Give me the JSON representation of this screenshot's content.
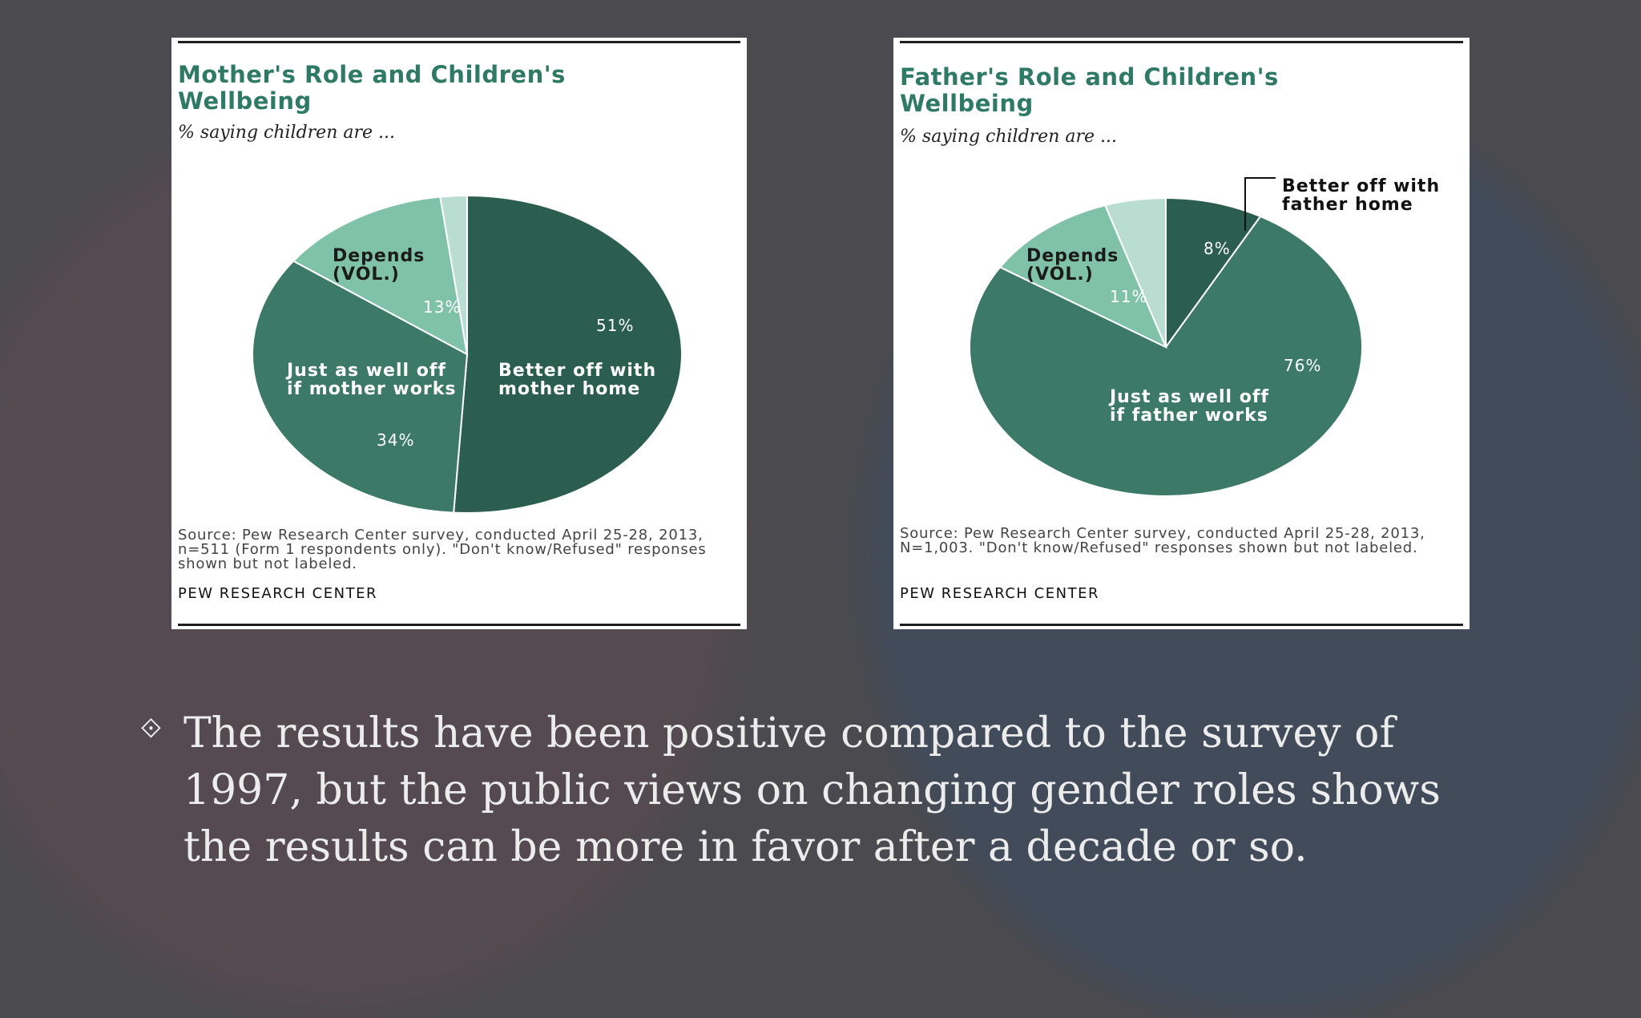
{
  "slide": {
    "bullet_icon": "diamond-bullet-icon",
    "bullet_text": "The results have been positive compared to the survey of 1997, but the public views on changing gender roles shows the results can be more in favor after a decade or so."
  },
  "colors": {
    "background": "#4b4a4f",
    "title": "#2f7a64",
    "slice_dark": "#2b5e4f",
    "slice_mid": "#3c7a67",
    "slice_light": "#7fc2a9",
    "slice_lightest": "#b9ddd0"
  },
  "chart_data": [
    {
      "type": "pie",
      "title": "Mother's Role and Children's Wellbeing",
      "subtitle": "% saying children are ...",
      "slices": [
        {
          "label": "Better off with mother home",
          "value": 51,
          "value_label": "51%"
        },
        {
          "label": "Just as well off if mother works",
          "value": 34,
          "value_label": "34%"
        },
        {
          "label": "Depends (VOL.)",
          "value": 13,
          "value_label": "13%"
        },
        {
          "label": "",
          "value": 2,
          "value_label": ""
        }
      ],
      "source": "Source: Pew Research Center survey, conducted April 25-28, 2013, n=511 (Form 1 respondents only). \"Don't know/Refused\" responses shown but not labeled.",
      "brand": "PEW RESEARCH CENTER"
    },
    {
      "type": "pie",
      "title": "Father's Role and Children's Wellbeing",
      "subtitle": "% saying children are ...",
      "slices": [
        {
          "label": "Better off with father home",
          "value": 8,
          "value_label": "8%"
        },
        {
          "label": "Just as well off if father works",
          "value": 76,
          "value_label": "76%"
        },
        {
          "label": "Depends (VOL.)",
          "value": 11,
          "value_label": "11%"
        },
        {
          "label": "",
          "value": 5,
          "value_label": ""
        }
      ],
      "source": "Source: Pew Research Center survey, conducted April 25-28, 2013, N=1,003. \"Don't know/Refused\" responses shown but not labeled.",
      "brand": "PEW RESEARCH CENTER"
    }
  ]
}
